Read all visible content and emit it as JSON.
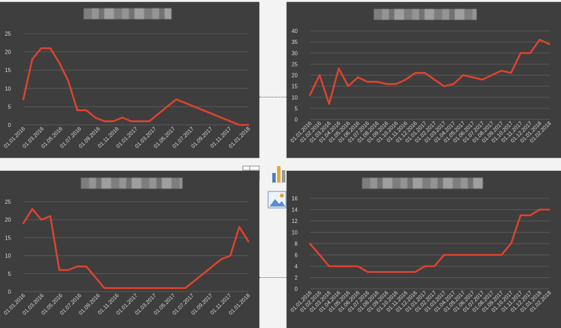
{
  "colors": {
    "panel": "#3e3e3e",
    "line": "#e0432f",
    "grid": "#5a5a5a",
    "text": "#d9d9d9"
  },
  "ribbon": {
    "icons": [
      "table-icon",
      "chart-icon",
      "picture-icon"
    ]
  },
  "chart_data": [
    {
      "type": "line",
      "title": "",
      "ylim": [
        0,
        25
      ],
      "yticks": [
        "0",
        "5",
        "10",
        "15",
        "20",
        "25"
      ],
      "xtick_labels": [
        "01.01.2016",
        "01.03.2016",
        "01.05.2016",
        "01.07.2016",
        "01.09.2016",
        "01.11.2016",
        "01.01.2017",
        "01.03.2017",
        "01.05.2017",
        "01.07.2017",
        "01.09.2017",
        "01.11.2017",
        "01.01.2018"
      ],
      "x": [
        "01.01.2016",
        "01.02.2016",
        "01.03.2016",
        "01.04.2016",
        "01.05.2016",
        "01.06.2016",
        "01.07.2016",
        "01.08.2016",
        "01.09.2016",
        "01.10.2016",
        "01.11.2016",
        "01.12.2016",
        "01.01.2017",
        "01.02.2017",
        "01.03.2017",
        "01.04.2017",
        "01.05.2017",
        "01.06.2017",
        "01.07.2017",
        "01.08.2017",
        "01.09.2017",
        "01.10.2017",
        "01.11.2017",
        "01.12.2017",
        "01.01.2018",
        "01.02.2018"
      ],
      "values": [
        7,
        18,
        21,
        21,
        17,
        12,
        4,
        4,
        2,
        1,
        1,
        2,
        1,
        1,
        1,
        3,
        5,
        7,
        6,
        5,
        4,
        3,
        2,
        1,
        0,
        0
      ],
      "grid": true
    },
    {
      "type": "line",
      "title": "",
      "ylim": [
        0,
        40
      ],
      "yticks": [
        "0",
        "5",
        "10",
        "15",
        "20",
        "25",
        "30",
        "35",
        "40"
      ],
      "xtick_labels": [
        "01.01.2016",
        "01.02.2016",
        "01.03.2016",
        "01.04.2016",
        "01.05.2016",
        "01.06.2016",
        "01.07.2016",
        "01.08.2016",
        "01.09.2016",
        "01.10.2016",
        "01.11.2016",
        "01.12.2016",
        "01.01.2017",
        "01.02.2017",
        "01.03.2017",
        "01.04.2017",
        "01.05.2017",
        "01.06.2017",
        "01.07.2017",
        "01.08.2017",
        "01.09.2017",
        "01.10.2017",
        "01.11.2017",
        "01.12.2017",
        "01.01.2018",
        "01.02.2018"
      ],
      "x": [
        "01.01.2016",
        "01.02.2016",
        "01.03.2016",
        "01.04.2016",
        "01.05.2016",
        "01.06.2016",
        "01.07.2016",
        "01.08.2016",
        "01.09.2016",
        "01.10.2016",
        "01.11.2016",
        "01.12.2016",
        "01.01.2017",
        "01.02.2017",
        "01.03.2017",
        "01.04.2017",
        "01.05.2017",
        "01.06.2017",
        "01.07.2017",
        "01.08.2017",
        "01.09.2017",
        "01.10.2017",
        "01.11.2017",
        "01.12.2017",
        "01.01.2018",
        "01.02.2018"
      ],
      "values": [
        11,
        20,
        7,
        23,
        15,
        19,
        17,
        17,
        16,
        16,
        18,
        21,
        21,
        18,
        15,
        16,
        20,
        19,
        18,
        20,
        22,
        21,
        30,
        30,
        36,
        34
      ],
      "grid": true
    },
    {
      "type": "line",
      "title": "",
      "ylim": [
        0,
        25
      ],
      "yticks": [
        "0",
        "5",
        "10",
        "15",
        "20",
        "25"
      ],
      "xtick_labels": [
        "01.01.2016",
        "01.03.2016",
        "01.05.2016",
        "01.07.2016",
        "01.09.2016",
        "01.11.2016",
        "01.01.2017",
        "01.03.2017",
        "01.05.2017",
        "01.07.2017",
        "01.09.2017",
        "01.11.2017",
        "01.01.2018"
      ],
      "x": [
        "01.01.2016",
        "01.02.2016",
        "01.03.2016",
        "01.04.2016",
        "01.05.2016",
        "01.06.2016",
        "01.07.2016",
        "01.08.2016",
        "01.09.2016",
        "01.10.2016",
        "01.11.2016",
        "01.12.2016",
        "01.01.2017",
        "01.02.2017",
        "01.03.2017",
        "01.04.2017",
        "01.05.2017",
        "01.06.2017",
        "01.07.2017",
        "01.08.2017",
        "01.09.2017",
        "01.10.2017",
        "01.11.2017",
        "01.12.2017",
        "01.01.2018",
        "01.02.2018"
      ],
      "values": [
        19,
        23,
        20,
        21,
        6,
        6,
        7,
        7,
        4,
        1,
        1,
        1,
        1,
        1,
        1,
        1,
        1,
        1,
        1,
        3,
        5,
        7,
        9,
        10,
        18,
        14
      ],
      "grid": true
    },
    {
      "type": "line",
      "title": "",
      "ylim": [
        0,
        16
      ],
      "yticks": [
        "0",
        "2",
        "4",
        "6",
        "8",
        "10",
        "12",
        "14",
        "16"
      ],
      "xtick_labels": [
        "01.01.2016",
        "01.02.2016",
        "01.03.2016",
        "01.04.2016",
        "01.05.2016",
        "01.06.2016",
        "01.07.2016",
        "01.08.2016",
        "01.09.2016",
        "01.10.2016",
        "01.11.2016",
        "01.12.2016",
        "01.01.2017",
        "01.02.2017",
        "01.03.2017",
        "01.04.2017",
        "01.05.2017",
        "01.06.2017",
        "01.07.2017",
        "01.08.2017",
        "01.09.2017",
        "01.10.2017",
        "01.11.2017",
        "01.12.2017",
        "01.01.2018",
        "01.02.2018"
      ],
      "x": [
        "01.01.2016",
        "01.02.2016",
        "01.03.2016",
        "01.04.2016",
        "01.05.2016",
        "01.06.2016",
        "01.07.2016",
        "01.08.2016",
        "01.09.2016",
        "01.10.2016",
        "01.11.2016",
        "01.12.2016",
        "01.01.2017",
        "01.02.2017",
        "01.03.2017",
        "01.04.2017",
        "01.05.2017",
        "01.06.2017",
        "01.07.2017",
        "01.08.2017",
        "01.09.2017",
        "01.10.2017",
        "01.11.2017",
        "01.12.2017",
        "01.01.2018",
        "01.02.2018"
      ],
      "values": [
        8,
        6,
        4,
        4,
        4,
        4,
        3,
        3,
        3,
        3,
        3,
        3,
        4,
        4,
        6,
        6,
        6,
        6,
        6,
        6,
        6,
        8,
        13,
        13,
        14,
        14
      ],
      "grid": true
    }
  ]
}
